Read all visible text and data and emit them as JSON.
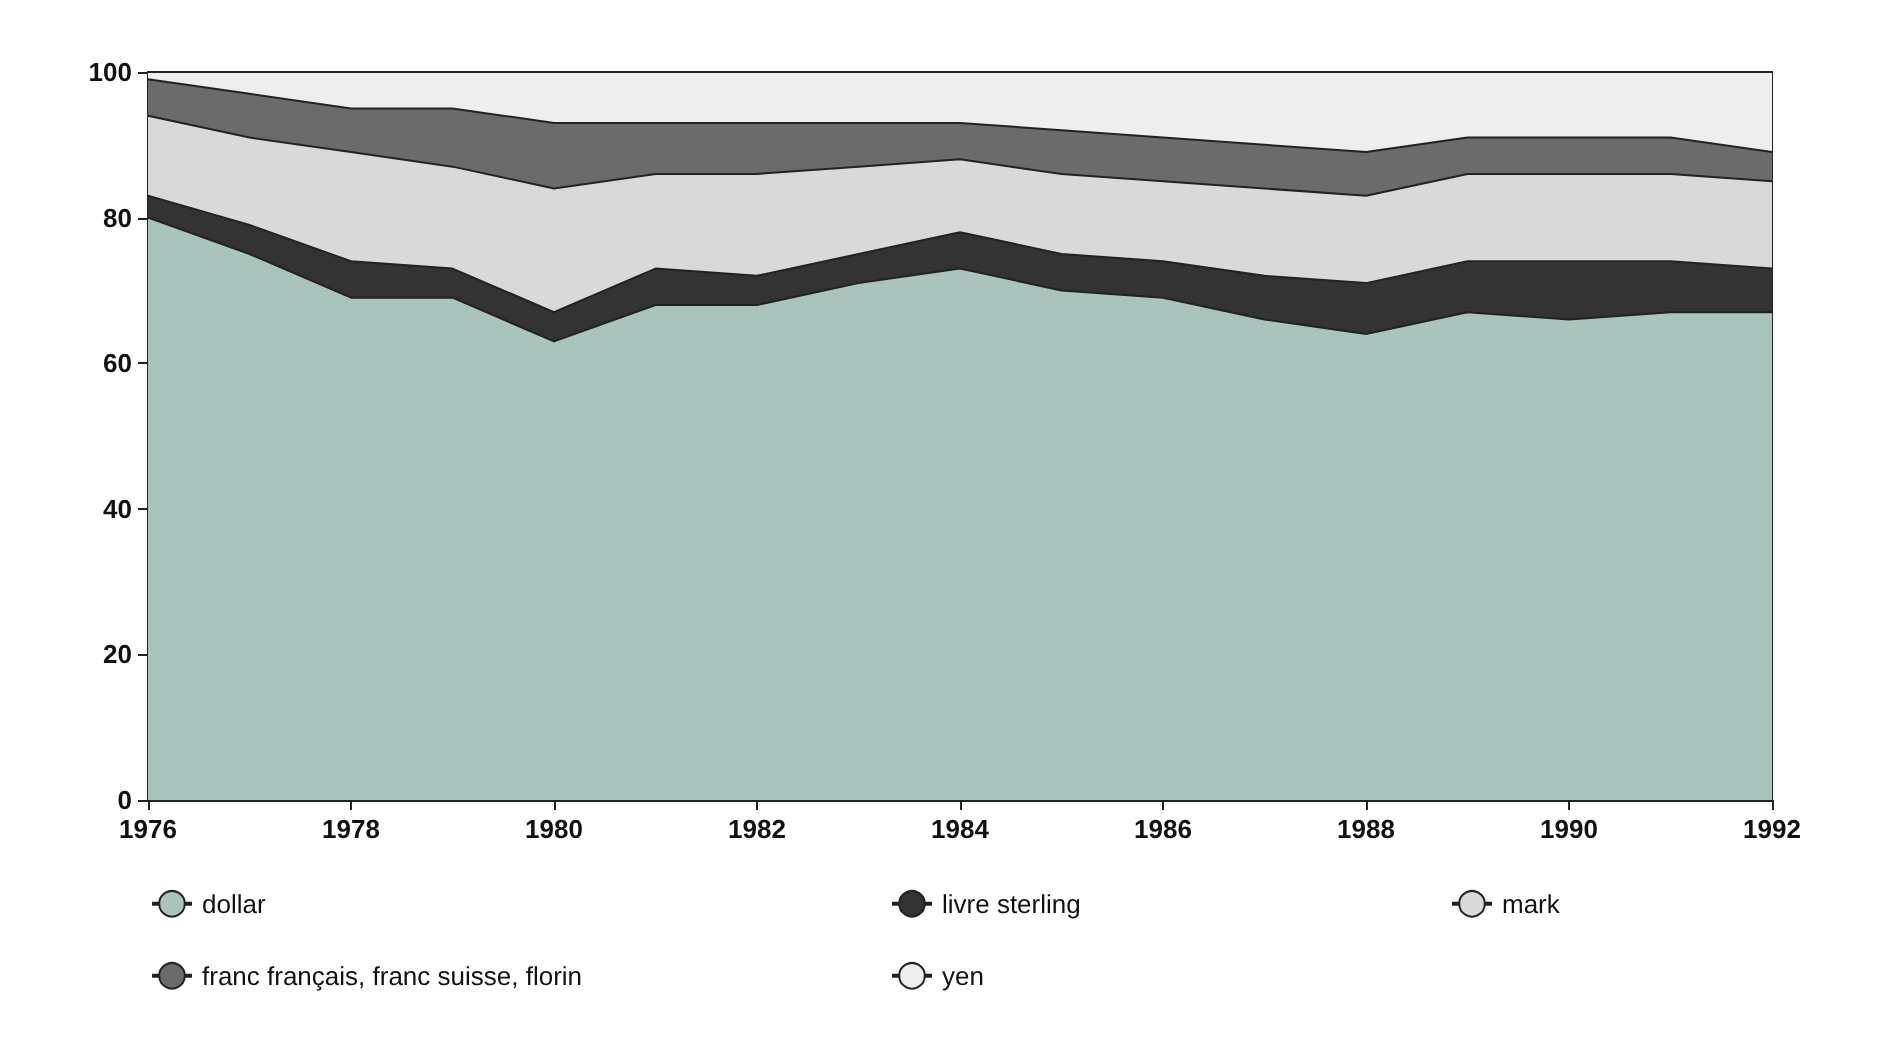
{
  "chart_data": {
    "type": "area",
    "stacked": true,
    "x": [
      1976,
      1977,
      1978,
      1979,
      1980,
      1981,
      1982,
      1983,
      1984,
      1985,
      1986,
      1987,
      1988,
      1989,
      1990,
      1991,
      1992
    ],
    "series": [
      {
        "name": "dollar",
        "color": "#a9c4bd",
        "values": [
          80,
          75,
          69,
          69,
          63,
          68,
          68,
          71,
          73,
          70,
          69,
          66,
          64,
          67,
          66,
          67,
          67
        ]
      },
      {
        "name": "livre sterling",
        "color": "#333333",
        "values": [
          3,
          4,
          5,
          4,
          4,
          5,
          4,
          4,
          5,
          5,
          5,
          6,
          7,
          7,
          8,
          7,
          6
        ]
      },
      {
        "name": "mark",
        "color": "#d9d9d9",
        "values": [
          11,
          12,
          15,
          14,
          17,
          13,
          14,
          12,
          10,
          11,
          11,
          12,
          12,
          12,
          12,
          12,
          12
        ]
      },
      {
        "name": "franc français, franc suisse, florin",
        "color": "#6b6b6b",
        "values": [
          5,
          6,
          6,
          8,
          9,
          7,
          7,
          6,
          5,
          6,
          6,
          6,
          6,
          5,
          5,
          5,
          4
        ]
      },
      {
        "name": "yen",
        "color": "#eeeeee",
        "values": [
          1,
          3,
          5,
          5,
          7,
          7,
          7,
          7,
          7,
          8,
          9,
          10,
          11,
          9,
          9,
          9,
          11
        ]
      }
    ],
    "xlim": [
      1976,
      1992
    ],
    "xticks": [
      1976,
      1978,
      1980,
      1982,
      1984,
      1986,
      1988,
      1990,
      1992
    ],
    "ylim": [
      0,
      100
    ],
    "yticks": [
      0,
      20,
      40,
      60,
      80,
      100
    ],
    "grid": false,
    "legend": "bottom"
  }
}
